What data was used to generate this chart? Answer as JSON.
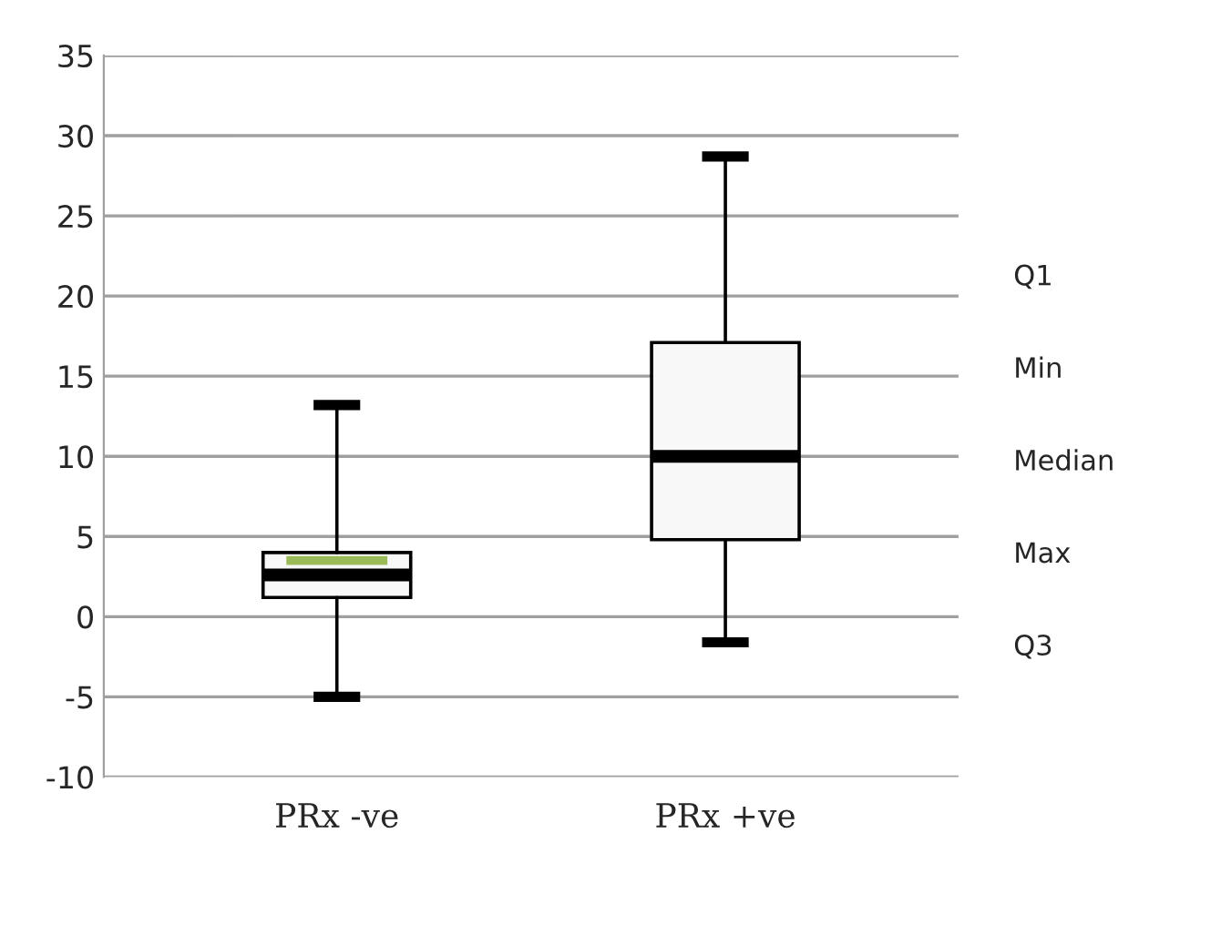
{
  "chart_data": {
    "type": "box",
    "categories": [
      "PRx -ve",
      "PRx +ve"
    ],
    "boxes": [
      {
        "low": -5,
        "q1": 1.2,
        "median": 2.6,
        "q3": 4.0,
        "high": 13.2,
        "mean": 3.5
      },
      {
        "low": -1.6,
        "q1": 4.8,
        "median": 10.0,
        "q3": 17.1,
        "high": 28.7
      }
    ],
    "ylim": [
      -10,
      35
    ],
    "yticks": [
      -10,
      -5,
      0,
      5,
      10,
      15,
      20,
      25,
      30,
      35
    ],
    "grid": "y",
    "annotations": [
      "Q1",
      "Min",
      "Median",
      "Max",
      "Q3"
    ]
  }
}
